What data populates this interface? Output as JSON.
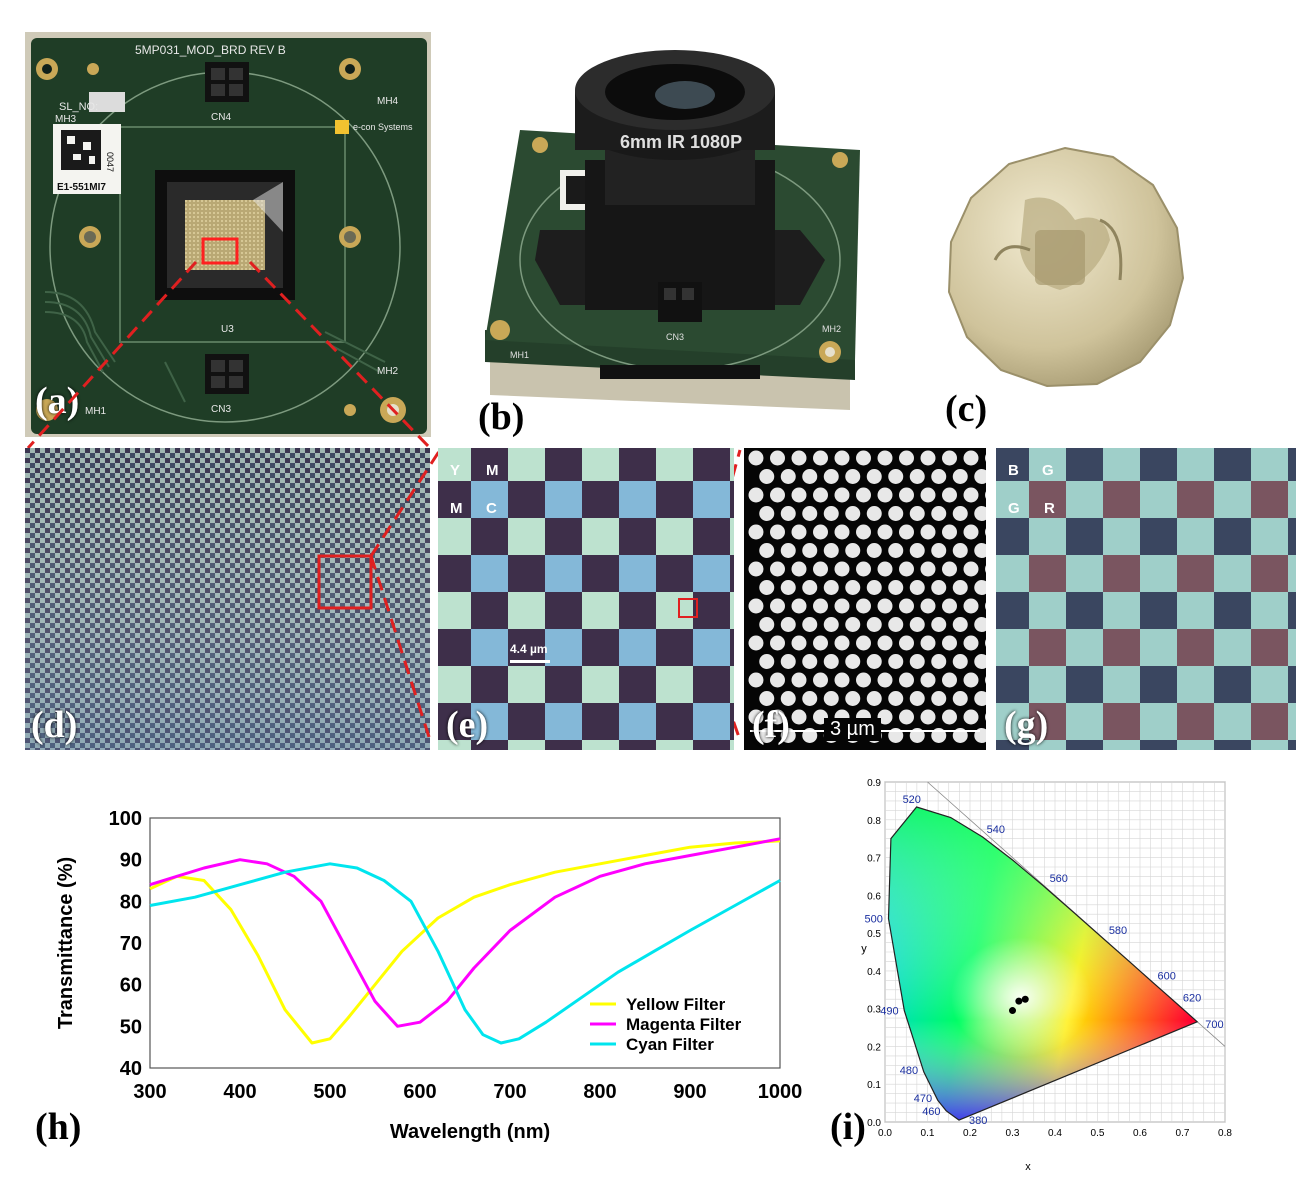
{
  "labels": {
    "a": "(a)",
    "b": "(b)",
    "c": "(c)",
    "d": "(d)",
    "e": "(e)",
    "f": "(f)",
    "g": "(g)",
    "h": "(h)",
    "i": "(i)"
  },
  "pcb_a": {
    "board_text": "5MP031_MOD_BRD REV B",
    "sl_no": "SL_NO:",
    "sticker_id": "E1-551MI7",
    "sticker_num": "0047",
    "mh1": "MH1",
    "mh2": "MH2",
    "mh3": "MH3",
    "mh4": "MH4",
    "cn3": "CN3",
    "cn4": "CN4",
    "u3": "U3",
    "logo": "e-con Systems"
  },
  "camera_b": {
    "lens_text": "6mm IR 1080P",
    "mh1": "MH1",
    "mh2": "MH2",
    "cn3": "CN3"
  },
  "micro_e": {
    "cells": [
      "Y",
      "M",
      "M",
      "C"
    ],
    "scale": "4.4 µm"
  },
  "sem_f": {
    "scale": "3 µm"
  },
  "micro_g": {
    "cells": [
      "B",
      "G",
      "G",
      "R"
    ]
  },
  "chart_data": [
    {
      "type": "line",
      "title": "",
      "xlabel": "Wavelength (nm)",
      "ylabel": "Transmittance (%)",
      "xlim": [
        300,
        1000
      ],
      "ylim": [
        40,
        100
      ],
      "xticks": [
        300,
        400,
        500,
        600,
        700,
        800,
        900,
        1000
      ],
      "yticks": [
        40,
        50,
        60,
        70,
        80,
        90,
        100
      ],
      "legend_position": "bottom-right",
      "series": [
        {
          "name": "Yellow Filter",
          "color": "#ffff00",
          "x": [
            300,
            330,
            360,
            390,
            420,
            450,
            480,
            500,
            520,
            550,
            580,
            620,
            660,
            700,
            750,
            800,
            850,
            900,
            950,
            1000
          ],
          "y": [
            83,
            86,
            85,
            78,
            67,
            54,
            46,
            47,
            52,
            60,
            68,
            76,
            81,
            84,
            87,
            89,
            91,
            93,
            94,
            94.5
          ]
        },
        {
          "name": "Magenta Filter",
          "color": "#ff00ff",
          "x": [
            300,
            330,
            360,
            400,
            430,
            460,
            490,
            520,
            550,
            575,
            600,
            630,
            660,
            700,
            750,
            800,
            850,
            900,
            950,
            1000
          ],
          "y": [
            84,
            86,
            88,
            90,
            89,
            86,
            80,
            68,
            56,
            50,
            51,
            56,
            64,
            73,
            81,
            86,
            89,
            91,
            93,
            95
          ]
        },
        {
          "name": "Cyan Filter",
          "color": "#00e5ee",
          "x": [
            300,
            350,
            400,
            450,
            500,
            530,
            560,
            590,
            620,
            650,
            670,
            690,
            710,
            740,
            780,
            820,
            860,
            900,
            950,
            1000
          ],
          "y": [
            79,
            81,
            84,
            87,
            89,
            88,
            85,
            80,
            68,
            54,
            48,
            46,
            47,
            51,
            57,
            63,
            68,
            73,
            79,
            85
          ]
        }
      ]
    },
    {
      "type": "scatter",
      "title": "",
      "xlabel": "x",
      "ylabel": "y",
      "xlim": [
        0,
        0.8
      ],
      "ylim": [
        0,
        0.9
      ],
      "xticks": [
        0.0,
        0.1,
        0.2,
        0.3,
        0.4,
        0.5,
        0.6,
        0.7,
        0.8
      ],
      "yticks": [
        0.0,
        0.1,
        0.2,
        0.3,
        0.4,
        0.5,
        0.6,
        0.7,
        0.8,
        0.9
      ],
      "wavelength_labels": [
        "380",
        "460",
        "470",
        "480",
        "490",
        "500",
        "520",
        "540",
        "560",
        "580",
        "600",
        "620",
        "700"
      ],
      "points": [
        {
          "x": 0.3,
          "y": 0.295
        },
        {
          "x": 0.315,
          "y": 0.32
        },
        {
          "x": 0.33,
          "y": 0.325
        }
      ]
    }
  ]
}
